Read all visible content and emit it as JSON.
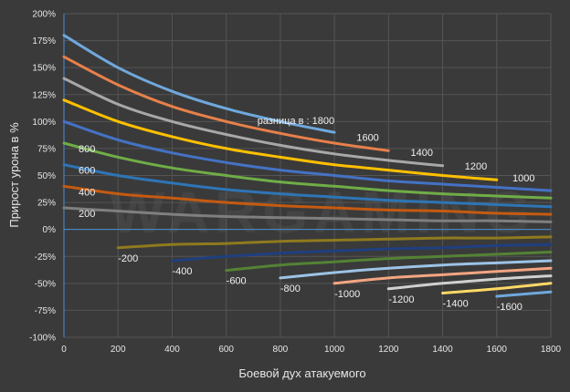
{
  "chart_data": {
    "type": "line",
    "title": "",
    "xlabel": "Боевой дух атакуемого",
    "ylabel": "Прирост урона в %",
    "xlim": [
      0,
      1800
    ],
    "ylim": [
      -100,
      200
    ],
    "x_ticks": [
      0,
      200,
      400,
      600,
      800,
      1000,
      1200,
      1400,
      1600,
      1800
    ],
    "y_ticks": [
      {
        "value": 200,
        "label": "200%"
      },
      {
        "value": 175,
        "label": "175%"
      },
      {
        "value": 150,
        "label": "150%"
      },
      {
        "value": 125,
        "label": "125%"
      },
      {
        "value": 100,
        "label": "100%"
      },
      {
        "value": 75,
        "label": "75%"
      },
      {
        "value": 50,
        "label": "50%"
      },
      {
        "value": 25,
        "label": "25%"
      },
      {
        "value": 0,
        "label": "0%"
      },
      {
        "value": -25,
        "label": "-25%"
      },
      {
        "value": -50,
        "label": "-50%"
      },
      {
        "value": -75,
        "label": "-75%"
      },
      {
        "value": -100,
        "label": "-100%"
      }
    ],
    "grid": true,
    "series": [
      {
        "name": "разница в : 1800",
        "label": "разница в : 1800",
        "color": "#6fa8dc",
        "points": [
          [
            0,
            180
          ],
          [
            200,
            150
          ],
          [
            400,
            128
          ],
          [
            600,
            112
          ],
          [
            800,
            100
          ],
          [
            1000,
            90
          ]
        ]
      },
      {
        "name": "1600",
        "label": "1600",
        "color": "#e8804a",
        "points": [
          [
            0,
            160
          ],
          [
            200,
            134
          ],
          [
            400,
            114
          ],
          [
            600,
            100
          ],
          [
            800,
            89
          ],
          [
            1000,
            80
          ],
          [
            1200,
            73
          ]
        ]
      },
      {
        "name": "1400",
        "label": "1400",
        "color": "#a8a8a8",
        "points": [
          [
            0,
            140
          ],
          [
            200,
            116
          ],
          [
            400,
            100
          ],
          [
            600,
            88
          ],
          [
            800,
            78
          ],
          [
            1000,
            70
          ],
          [
            1200,
            64
          ],
          [
            1400,
            59
          ]
        ]
      },
      {
        "name": "1200",
        "label": "1200",
        "color": "#ffc000",
        "points": [
          [
            0,
            120
          ],
          [
            200,
            100
          ],
          [
            400,
            86
          ],
          [
            600,
            75
          ],
          [
            800,
            67
          ],
          [
            1000,
            60
          ],
          [
            1200,
            55
          ],
          [
            1400,
            50
          ],
          [
            1600,
            46
          ]
        ]
      },
      {
        "name": "1000",
        "label": "1000",
        "color": "#4472c4",
        "points": [
          [
            0,
            100
          ],
          [
            200,
            83
          ],
          [
            400,
            71
          ],
          [
            600,
            62
          ],
          [
            800,
            55
          ],
          [
            1000,
            50
          ],
          [
            1200,
            45
          ],
          [
            1400,
            42
          ],
          [
            1600,
            39
          ],
          [
            1800,
            36
          ]
        ]
      },
      {
        "name": "800",
        "label": "800",
        "color": "#70ad47",
        "points": [
          [
            0,
            80
          ],
          [
            200,
            67
          ],
          [
            400,
            57
          ],
          [
            600,
            50
          ],
          [
            800,
            44
          ],
          [
            1000,
            40
          ],
          [
            1200,
            36
          ],
          [
            1400,
            33
          ],
          [
            1600,
            31
          ],
          [
            1800,
            29
          ]
        ]
      },
      {
        "name": "600",
        "label": "600",
        "color": "#2e75b6",
        "points": [
          [
            0,
            60
          ],
          [
            200,
            50
          ],
          [
            400,
            43
          ],
          [
            600,
            37
          ],
          [
            800,
            33
          ],
          [
            1000,
            30
          ],
          [
            1200,
            27
          ],
          [
            1400,
            25
          ],
          [
            1600,
            23
          ],
          [
            1800,
            21
          ]
        ]
      },
      {
        "name": "400",
        "label": "400",
        "color": "#c55a11",
        "points": [
          [
            0,
            40
          ],
          [
            200,
            33
          ],
          [
            400,
            29
          ],
          [
            600,
            25
          ],
          [
            800,
            22
          ],
          [
            1000,
            20
          ],
          [
            1200,
            18
          ],
          [
            1400,
            17
          ],
          [
            1600,
            15
          ],
          [
            1800,
            14
          ]
        ]
      },
      {
        "name": "200",
        "label": "200",
        "color": "#7f7f7f",
        "points": [
          [
            0,
            20
          ],
          [
            200,
            17
          ],
          [
            400,
            14
          ],
          [
            600,
            12
          ],
          [
            800,
            11
          ],
          [
            1000,
            10
          ],
          [
            1200,
            9
          ],
          [
            1400,
            8
          ],
          [
            1600,
            8
          ],
          [
            1800,
            7
          ]
        ]
      },
      {
        "name": "-200",
        "label": "-200",
        "color": "#8f7a1e",
        "points": [
          [
            200,
            -17
          ],
          [
            400,
            -14
          ],
          [
            600,
            -13
          ],
          [
            800,
            -11
          ],
          [
            1000,
            -10
          ],
          [
            1200,
            -9
          ],
          [
            1400,
            -8
          ],
          [
            1600,
            -8
          ],
          [
            1800,
            -7
          ]
        ]
      },
      {
        "name": "-400",
        "label": "-400",
        "color": "#1f3f7f",
        "points": [
          [
            400,
            -29
          ],
          [
            600,
            -25
          ],
          [
            800,
            -22
          ],
          [
            1000,
            -20
          ],
          [
            1200,
            -18
          ],
          [
            1400,
            -17
          ],
          [
            1600,
            -15
          ],
          [
            1800,
            -14
          ]
        ]
      },
      {
        "name": "-600",
        "label": "-600",
        "color": "#548235",
        "points": [
          [
            600,
            -38
          ],
          [
            800,
            -33
          ],
          [
            1000,
            -30
          ],
          [
            1200,
            -27
          ],
          [
            1400,
            -25
          ],
          [
            1600,
            -23
          ],
          [
            1800,
            -21
          ]
        ]
      },
      {
        "name": "-800",
        "label": "-800",
        "color": "#9dc3e6",
        "points": [
          [
            800,
            -45
          ],
          [
            1000,
            -40
          ],
          [
            1200,
            -36
          ],
          [
            1400,
            -33
          ],
          [
            1600,
            -31
          ],
          [
            1800,
            -29
          ]
        ]
      },
      {
        "name": "-1000",
        "label": "-1000",
        "color": "#f4a582",
        "points": [
          [
            1000,
            -50
          ],
          [
            1200,
            -45
          ],
          [
            1400,
            -42
          ],
          [
            1600,
            -39
          ],
          [
            1800,
            -36
          ]
        ]
      },
      {
        "name": "-1200",
        "label": "-1200",
        "color": "#d0d0d0",
        "points": [
          [
            1200,
            -55
          ],
          [
            1400,
            -50
          ],
          [
            1600,
            -46
          ],
          [
            1800,
            -43
          ]
        ]
      },
      {
        "name": "-1400",
        "label": "-1400",
        "color": "#ffd966",
        "points": [
          [
            1400,
            -59
          ],
          [
            1600,
            -55
          ],
          [
            1800,
            -50
          ]
        ]
      },
      {
        "name": "-1600",
        "label": "-1600",
        "color": "#6fa8dc",
        "points": [
          [
            1600,
            -62
          ],
          [
            1800,
            -58
          ]
        ]
      }
    ]
  }
}
